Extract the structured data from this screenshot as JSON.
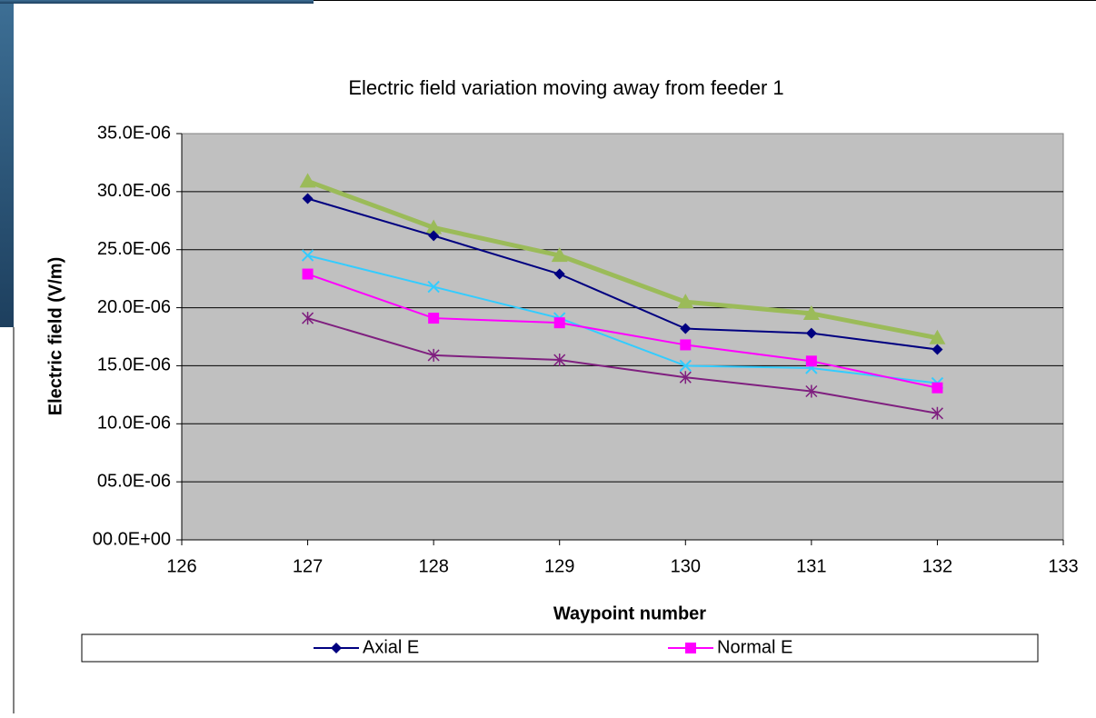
{
  "chart_data": {
    "type": "line",
    "title": "Electric field variation moving away from feeder 1",
    "x_label": "Waypoint number",
    "y_label": "Electric field (V/m)",
    "x": [
      127,
      128,
      129,
      130,
      131,
      132
    ],
    "xlim": [
      126,
      133
    ],
    "xticks": [
      126,
      127,
      128,
      129,
      130,
      131,
      132,
      133
    ],
    "ylim": [
      0,
      3.5e-05
    ],
    "yticks": [
      {
        "value": 0,
        "label": "00.0E+00"
      },
      {
        "value": 5e-06,
        "label": "05.0E-06"
      },
      {
        "value": 1e-05,
        "label": "10.0E-06"
      },
      {
        "value": 1.5e-05,
        "label": "15.0E-06"
      },
      {
        "value": 2e-05,
        "label": "20.0E-06"
      },
      {
        "value": 2.5e-05,
        "label": "25.0E-06"
      },
      {
        "value": 3e-05,
        "label": "30.0E-06"
      },
      {
        "value": 3.5e-05,
        "label": "35.0E-06"
      }
    ],
    "grid": true,
    "legend": "bottom",
    "series": [
      {
        "color": "#9bbb59",
        "marker": "triangle",
        "line_width": 5,
        "values": [
          3.09e-05,
          2.69e-05,
          2.45e-05,
          2.05e-05,
          1.95e-05,
          1.74e-05
        ]
      },
      {
        "name": "Axial E",
        "color": "#000080",
        "marker": "diamond",
        "line_width": 2,
        "values": [
          2.94e-05,
          2.62e-05,
          2.29e-05,
          1.82e-05,
          1.78e-05,
          1.64e-05
        ]
      },
      {
        "color": "#33ccff",
        "marker": "x",
        "line_width": 2,
        "values": [
          2.45e-05,
          2.18e-05,
          1.91e-05,
          1.5e-05,
          1.48e-05,
          1.35e-05
        ]
      },
      {
        "name": "Normal E",
        "color": "#ff00ff",
        "marker": "square",
        "line_width": 2,
        "values": [
          2.29e-05,
          1.91e-05,
          1.87e-05,
          1.68e-05,
          1.54e-05,
          1.31e-05
        ]
      },
      {
        "color": "#7f1f7f",
        "marker": "star",
        "line_width": 2,
        "values": [
          1.91e-05,
          1.59e-05,
          1.55e-05,
          1.4e-05,
          1.28e-05,
          1.09e-05
        ]
      }
    ]
  }
}
